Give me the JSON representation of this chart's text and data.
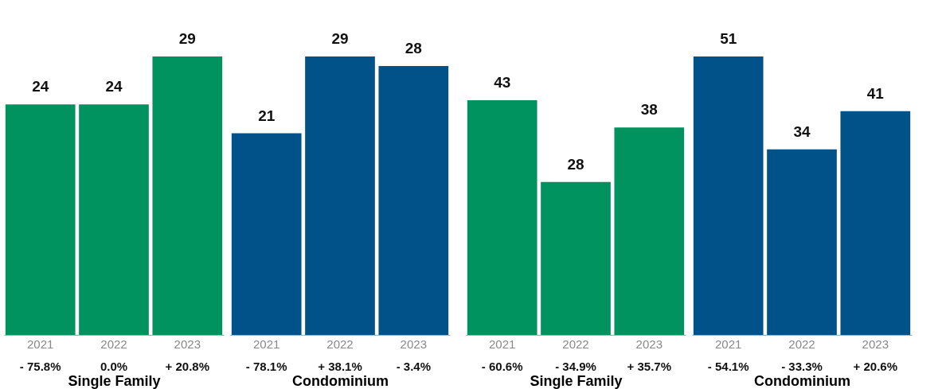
{
  "chart_data": [
    {
      "type": "bar",
      "categories": [
        "2021",
        "2022",
        "2023"
      ],
      "values": [
        24,
        24,
        29
      ],
      "color": "#00935f",
      "data_labels": true,
      "xlabel": "Single Family",
      "annotations": [
        "- 75.8%",
        "0.0%",
        "+ 20.8%"
      ]
    },
    {
      "type": "bar",
      "categories": [
        "2021",
        "2022",
        "2023"
      ],
      "values": [
        21,
        29,
        28
      ],
      "color": "#005288",
      "data_labels": true,
      "xlabel": "Condominium",
      "annotations": [
        "- 78.1%",
        "+ 38.1%",
        "- 3.4%"
      ]
    },
    {
      "type": "bar",
      "categories": [
        "2021",
        "2022",
        "2023"
      ],
      "values": [
        43,
        28,
        38
      ],
      "color": "#00935f",
      "data_labels": true,
      "xlabel": "Single Family",
      "annotations": [
        "- 60.6%",
        "- 34.9%",
        "+ 35.7%"
      ]
    },
    {
      "type": "bar",
      "categories": [
        "2021",
        "2022",
        "2023"
      ],
      "values": [
        51,
        34,
        41
      ],
      "color": "#005288",
      "data_labels": true,
      "xlabel": "Condominium",
      "annotations": [
        "- 54.1%",
        "- 33.3%",
        "+ 20.6%"
      ]
    }
  ]
}
